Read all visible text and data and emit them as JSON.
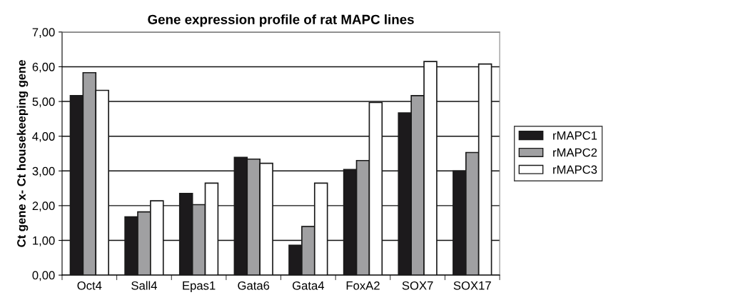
{
  "chart_data": {
    "type": "bar",
    "title": "Gene expression profile of rat MAPC lines",
    "ylabel": "Ct gene x- Ct housekeeping gene",
    "categories": [
      "Oct4",
      "Sall4",
      "Epas1",
      "Gata6",
      "Gata4",
      "FoxA2",
      "SOX7",
      "SOX17"
    ],
    "series": [
      {
        "name": "rMAPC1",
        "color": "#1c1a1c",
        "values": [
          5.17,
          1.68,
          2.35,
          3.39,
          0.86,
          3.04,
          4.67,
          3.0
        ]
      },
      {
        "name": "rMAPC2",
        "color": "#a0a0a2",
        "values": [
          5.83,
          1.82,
          2.03,
          3.34,
          1.4,
          3.3,
          5.17,
          3.53
        ]
      },
      {
        "name": "rMAPC3",
        "color": "#ffffff",
        "values": [
          5.32,
          2.14,
          2.65,
          3.22,
          2.65,
          4.97,
          6.15,
          6.08
        ]
      }
    ],
    "ylim": [
      0,
      7
    ],
    "yticks": [
      {
        "value": 0,
        "label": "0,00"
      },
      {
        "value": 1,
        "label": "1,00"
      },
      {
        "value": 2,
        "label": "2,00"
      },
      {
        "value": 3,
        "label": "3,00"
      },
      {
        "value": 4,
        "label": "4,00"
      },
      {
        "value": 5,
        "label": "5,00"
      },
      {
        "value": 6,
        "label": "6,00"
      },
      {
        "value": 7,
        "label": "7,00"
      }
    ],
    "grid": "y",
    "legend": "right"
  }
}
